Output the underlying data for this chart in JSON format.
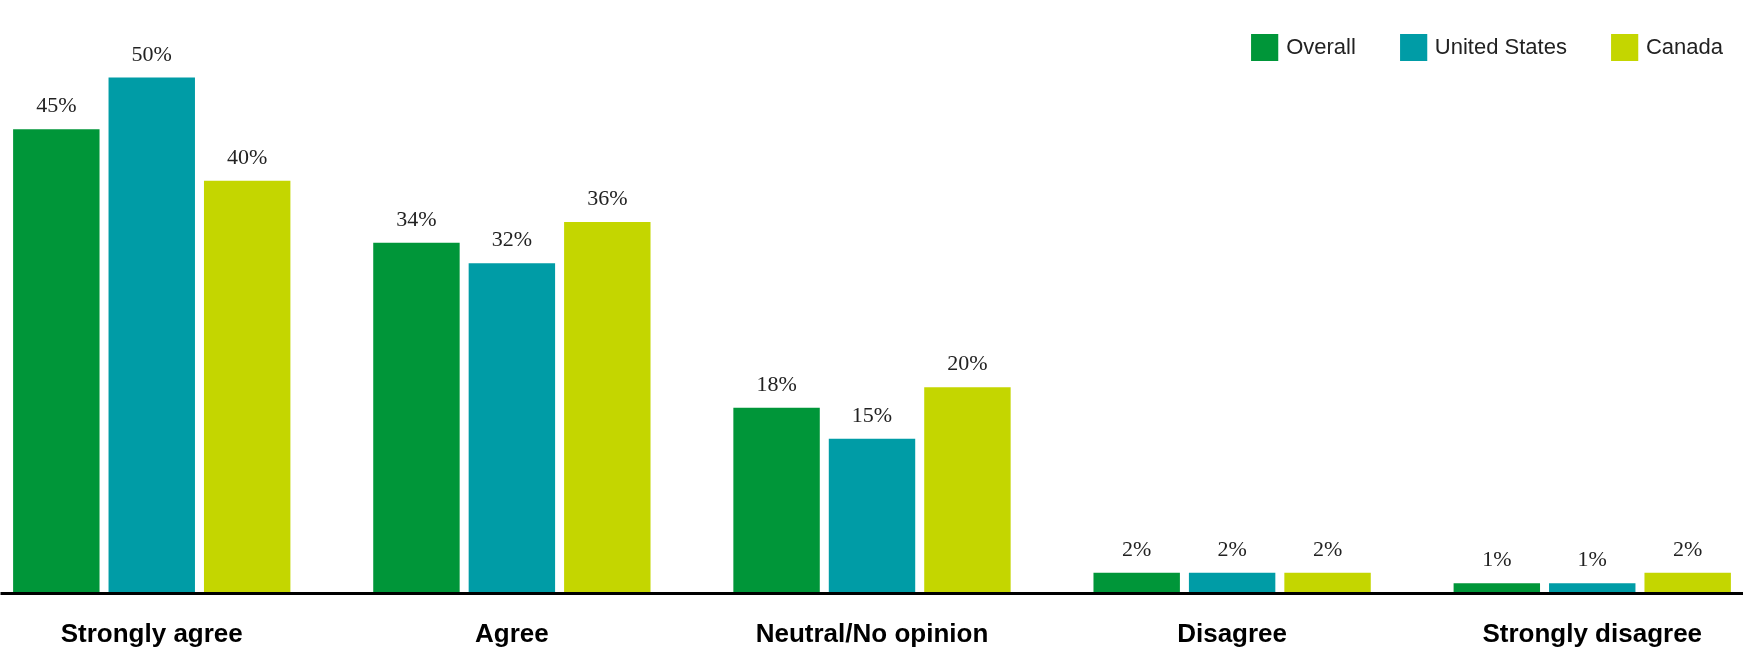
{
  "chart_data": {
    "type": "bar",
    "categories": [
      "Strongly agree",
      "Agree",
      "Neutral/No opinion",
      "Disagree",
      "Strongly disagree"
    ],
    "series": [
      {
        "name": "Overall",
        "color": "#009639",
        "values": [
          45,
          34,
          18,
          2,
          1
        ],
        "value_labels": [
          "45%",
          "34%",
          "18%",
          "2%",
          "1%"
        ]
      },
      {
        "name": "United States",
        "color": "#009ca6",
        "values": [
          50,
          32,
          15,
          2,
          1
        ],
        "value_labels": [
          "50%",
          "32%",
          "15%",
          "2%",
          "1%"
        ]
      },
      {
        "name": "Canada",
        "color": "#c4d600",
        "values": [
          40,
          36,
          20,
          2,
          2
        ],
        "value_labels": [
          "40%",
          "36%",
          "20%",
          "2%",
          "2%"
        ]
      }
    ],
    "legend": "top right",
    "grid": false
  }
}
